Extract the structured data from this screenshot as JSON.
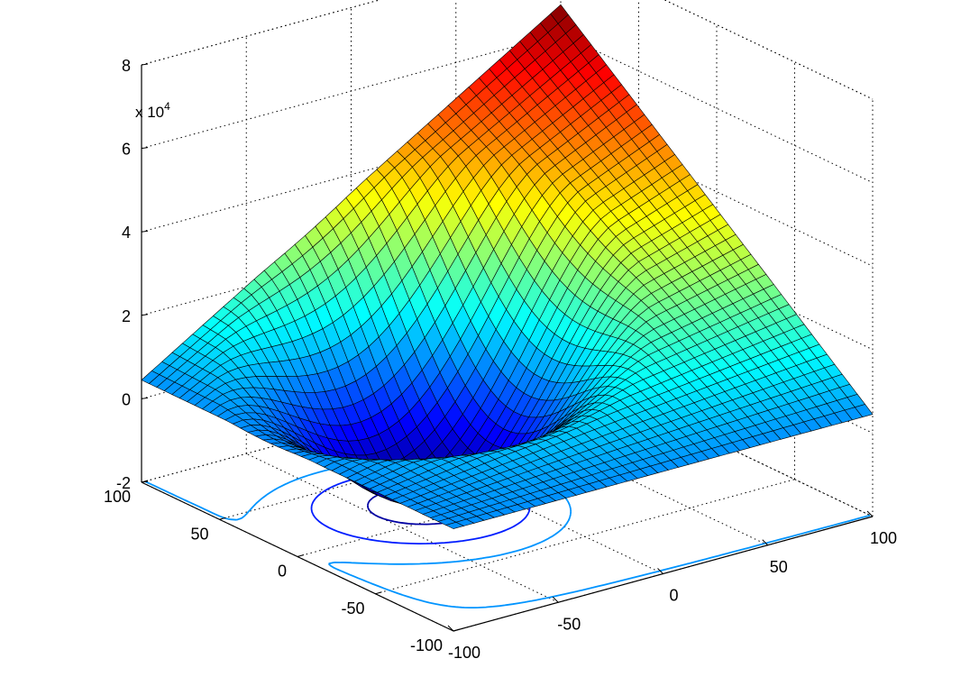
{
  "chart_data": {
    "type": "surface",
    "title": "",
    "xlabel": "",
    "ylabel": "",
    "zlabel": "",
    "x_range": [
      -100,
      100
    ],
    "y_range": [
      -100,
      100
    ],
    "z_range": [
      -20000,
      80000
    ],
    "z_exponent_label": "x 10",
    "z_exponent_power": "4",
    "x_tick_labels": [
      "-100",
      "-50",
      "0",
      "50",
      "100"
    ],
    "y_tick_labels": [
      "-100",
      "-50",
      "0",
      "50",
      "100"
    ],
    "z_tick_labels": [
      "-2",
      "0",
      "2",
      "4",
      "6",
      "8"
    ],
    "grid": true,
    "colormap": "jet",
    "mesh_color": "#000000",
    "corner_values": [
      {
        "x": -100,
        "y": -100,
        "z": 4500
      },
      {
        "x": 100,
        "y": -100,
        "z": 4500
      },
      {
        "x": 100,
        "y": 100,
        "z": 67000
      },
      {
        "x": -100,
        "y": 100,
        "z": 4500
      }
    ],
    "minimum": {
      "x": -20,
      "y": 20,
      "z": -18000
    },
    "contour_levels": [
      -15000,
      -5000,
      5000
    ]
  }
}
